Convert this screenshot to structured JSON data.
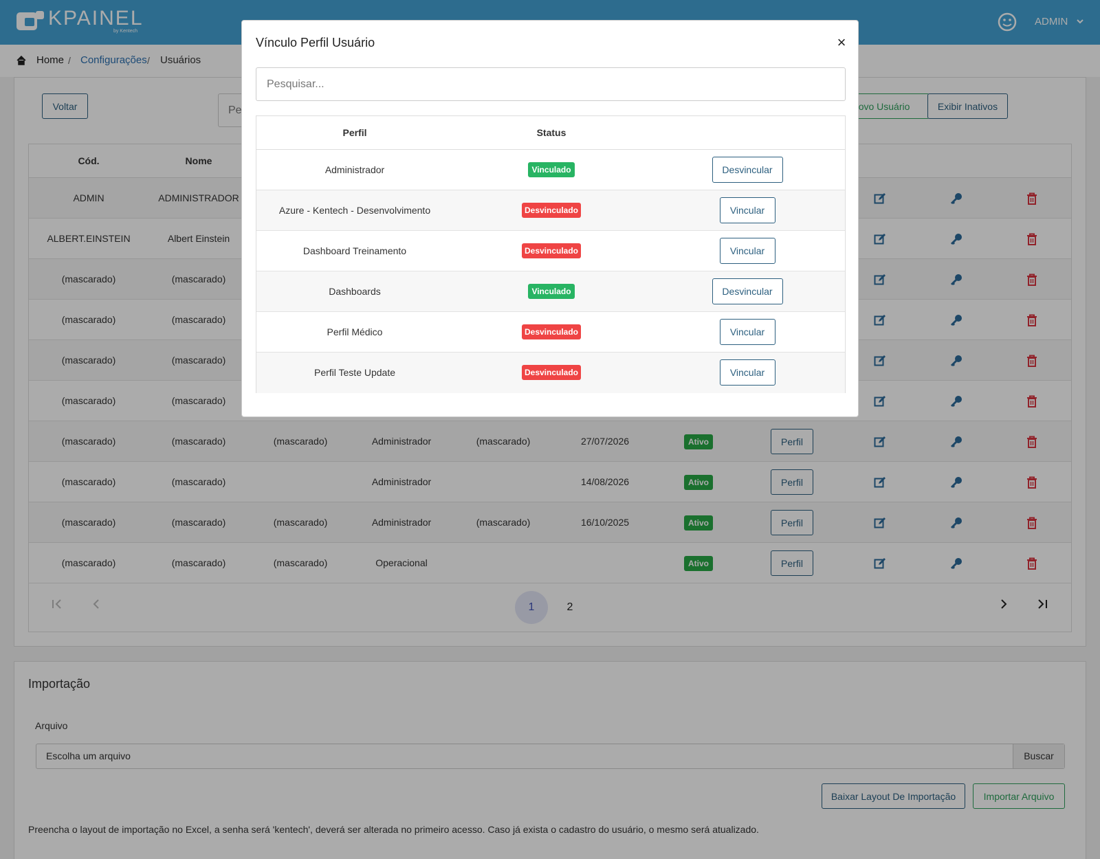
{
  "header": {
    "logo": "KPAINEL",
    "logo_tagline": "by Kentech",
    "user": "ADMIN"
  },
  "breadcrumb": [
    "Home",
    "Configurações",
    "Usuários"
  ],
  "toolbar": {
    "back": "Voltar",
    "search_placeholder": "Pesquisar...",
    "new_user": "Novo Usuário",
    "show_inactive": "Exibir Inativos"
  },
  "users_table": {
    "columns": [
      "Cód.",
      "Nome"
    ],
    "rows": [
      [
        "ADMIN",
        "ADMINISTRADOR"
      ],
      [
        "ALBERT.EINSTEIN",
        "Albert Einstein"
      ],
      [
        "(mascarado)",
        "(mascarado)"
      ],
      [
        "(mascarado)",
        "(mascarado)"
      ],
      [
        "(mascarado)",
        "(mascarado)"
      ],
      [
        "(mascarado)",
        "(mascarado)"
      ],
      [
        "(mascarado)",
        "(mascarado)",
        "(mascarado)",
        "Administrador",
        "(mascarado)",
        "27/07/2026",
        "Ativo",
        "Perfil"
      ],
      [
        "(mascarado)",
        "(mascarado)",
        null,
        "Administrador",
        null,
        "14/08/2026",
        "Ativo",
        "Perfil"
      ],
      [
        "(mascarado)",
        "(mascarado)",
        "(mascarado)",
        "Administrador",
        "(mascarado)",
        "16/10/2025",
        "Ativo",
        "Perfil"
      ],
      [
        "(mascarado)",
        "(mascarado)",
        "(mascarado)",
        "Operacional",
        null,
        null,
        "Ativo",
        "Perfil"
      ]
    ]
  },
  "pagination": {
    "pages": [
      1,
      2
    ]
  },
  "import": {
    "title": "Importação",
    "file_label": "Arquivo",
    "file_placeholder": "Escolha um arquivo",
    "browse": "Buscar",
    "download_layout": "Baixar Layout De Importação",
    "import_file": "Importar Arquivo",
    "note": "Preencha o layout de importação no Excel, a senha será 'kentech', deverá ser alterada no primeiro acesso. Caso já exista o cadastro do usuário, o mesmo será atualizado."
  },
  "modal": {
    "title": "Vínculo Perfil Usuário",
    "close": "×",
    "search_placeholder": "Pesquisar...",
    "columns": [
      "Perfil",
      "Status"
    ],
    "rows": [
      {
        "profile": "Administrador",
        "status": "Vinculado",
        "action": "Desvincular"
      },
      {
        "profile": "Azure - Kentech - Desenvolvimento",
        "status": "Desvinculado",
        "action": "Vincular"
      },
      {
        "profile": "Dashboard Treinamento",
        "status": "Desvinculado",
        "action": "Vincular"
      },
      {
        "profile": "Dashboards",
        "status": "Vinculado",
        "action": "Desvincular"
      },
      {
        "profile": "Perfil Médico",
        "status": "Desvinculado",
        "action": "Vincular"
      },
      {
        "profile": "Perfil Teste Update",
        "status": "Desvinculado",
        "action": "Vincular"
      }
    ]
  }
}
